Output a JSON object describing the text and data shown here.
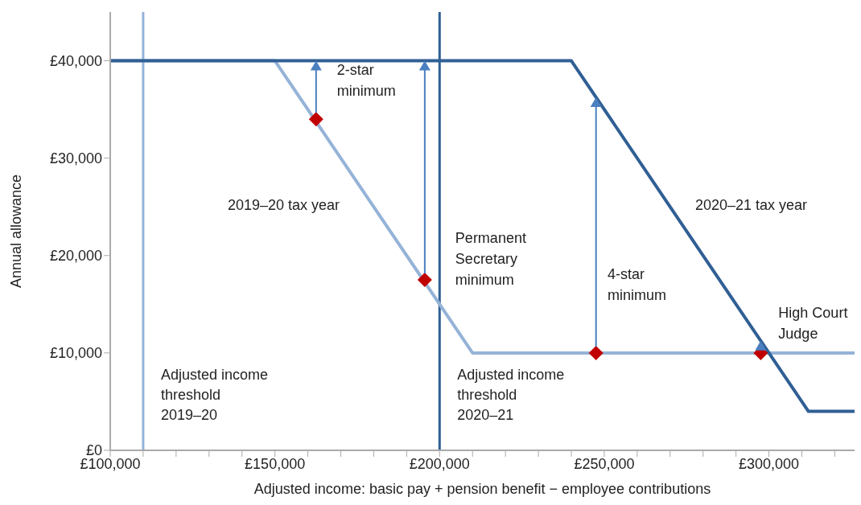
{
  "chart_data": {
    "type": "line",
    "xlabel": "Adjusted income: basic pay + pension benefit − employee contributions",
    "ylabel": "Annual allowance",
    "xlim": [
      100000,
      326000
    ],
    "xticks": [
      {
        "value": 100000,
        "label": "£100,000"
      },
      {
        "value": 110000,
        "label": null
      },
      {
        "value": 120000,
        "label": null
      },
      {
        "value": 130000,
        "label": null
      },
      {
        "value": 140000,
        "label": null
      },
      {
        "value": 150000,
        "label": "£150,000"
      },
      {
        "value": 160000,
        "label": null
      },
      {
        "value": 170000,
        "label": null
      },
      {
        "value": 180000,
        "label": null
      },
      {
        "value": 190000,
        "label": null
      },
      {
        "value": 200000,
        "label": "£200,000"
      },
      {
        "value": 210000,
        "label": null
      },
      {
        "value": 220000,
        "label": null
      },
      {
        "value": 230000,
        "label": null
      },
      {
        "value": 240000,
        "label": null
      },
      {
        "value": 250000,
        "label": "£250,000"
      },
      {
        "value": 260000,
        "label": null
      },
      {
        "value": 270000,
        "label": null
      },
      {
        "value": 280000,
        "label": null
      },
      {
        "value": 290000,
        "label": null
      },
      {
        "value": 300000,
        "label": "£300,000"
      },
      {
        "value": 310000,
        "label": null
      },
      {
        "value": 320000,
        "label": null
      }
    ],
    "ylim": [
      0,
      45000
    ],
    "yticks": [
      {
        "value": 0,
        "label": "£0"
      },
      {
        "value": 10000,
        "label": "£10,000"
      },
      {
        "value": 20000,
        "label": "£20,000"
      },
      {
        "value": 30000,
        "label": "£30,000"
      },
      {
        "value": 40000,
        "label": "£40,000"
      }
    ],
    "grid": false,
    "marker": "none",
    "series": [
      {
        "name": "2019–20 tax year",
        "color": "#95b3d7",
        "x": [
          100000,
          150000,
          210000,
          326000
        ],
        "values": [
          40000,
          40000,
          10000,
          10000
        ]
      },
      {
        "name": "2020–21 tax year",
        "color": "#305f94",
        "x": [
          100000,
          240000,
          312000,
          326000
        ],
        "values": [
          40000,
          40000,
          4000,
          4000
        ]
      },
      {
        "type": "scatter",
        "marker": "diamond",
        "color": "#c00000",
        "x": [
          162500,
          195500,
          247500,
          297500
        ],
        "values": [
          34000,
          17500,
          10000,
          10000
        ]
      }
    ],
    "ref_lines": [
      {
        "axis": "x",
        "value": 110000,
        "label": "Adjusted income threshold 2019–20",
        "color": "#95b3d7"
      },
      {
        "axis": "x",
        "value": 200000,
        "label": "Adjusted income threshold 2020–21",
        "color": "#305f94"
      }
    ],
    "annotations": [
      {
        "text": "2-star minimum",
        "x": 162500,
        "y": 34000
      },
      {
        "text": "Permanent Secretary minimum",
        "x": 195500,
        "y": 17500
      },
      "4-star minimum",
      {
        "text": "High Court Judge",
        "x": 297500,
        "y": 10000
      }
    ]
  }
}
